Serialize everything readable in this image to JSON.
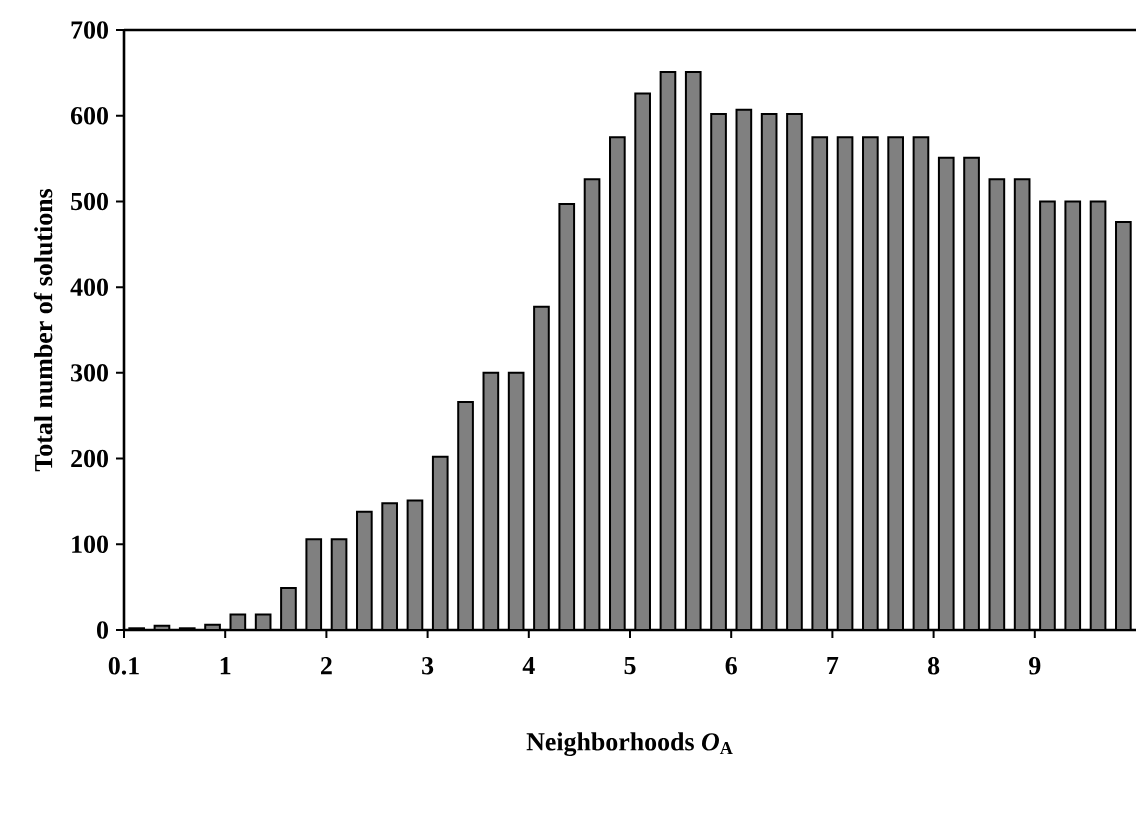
{
  "chart_data": {
    "type": "bar",
    "xlabel": "Neighborhoods *O*$_{A}$",
    "ylabel": "Total number of solutions",
    "categories": [
      "0.1",
      null,
      null,
      null,
      "1",
      null,
      null,
      null,
      "2",
      null,
      null,
      null,
      "3",
      null,
      null,
      null,
      "4",
      null,
      null,
      null,
      "5",
      null,
      null,
      null,
      "6",
      null,
      null,
      null,
      "7",
      null,
      null,
      null,
      "8",
      null,
      null,
      null,
      "9",
      null,
      null,
      null
    ],
    "values": [
      2,
      5,
      2,
      6,
      18,
      18,
      49,
      106,
      106,
      138,
      148,
      151,
      202,
      266,
      300,
      300,
      377,
      497,
      526,
      575,
      626,
      651,
      651,
      602,
      607,
      602,
      602,
      575,
      575,
      575,
      575,
      575,
      551,
      551,
      526,
      526,
      500,
      500,
      500,
      476
    ],
    "color": "#808080",
    "ylim": [
      0,
      700
    ],
    "yticks": [
      0,
      100,
      200,
      300,
      400,
      500,
      600,
      700
    ]
  }
}
